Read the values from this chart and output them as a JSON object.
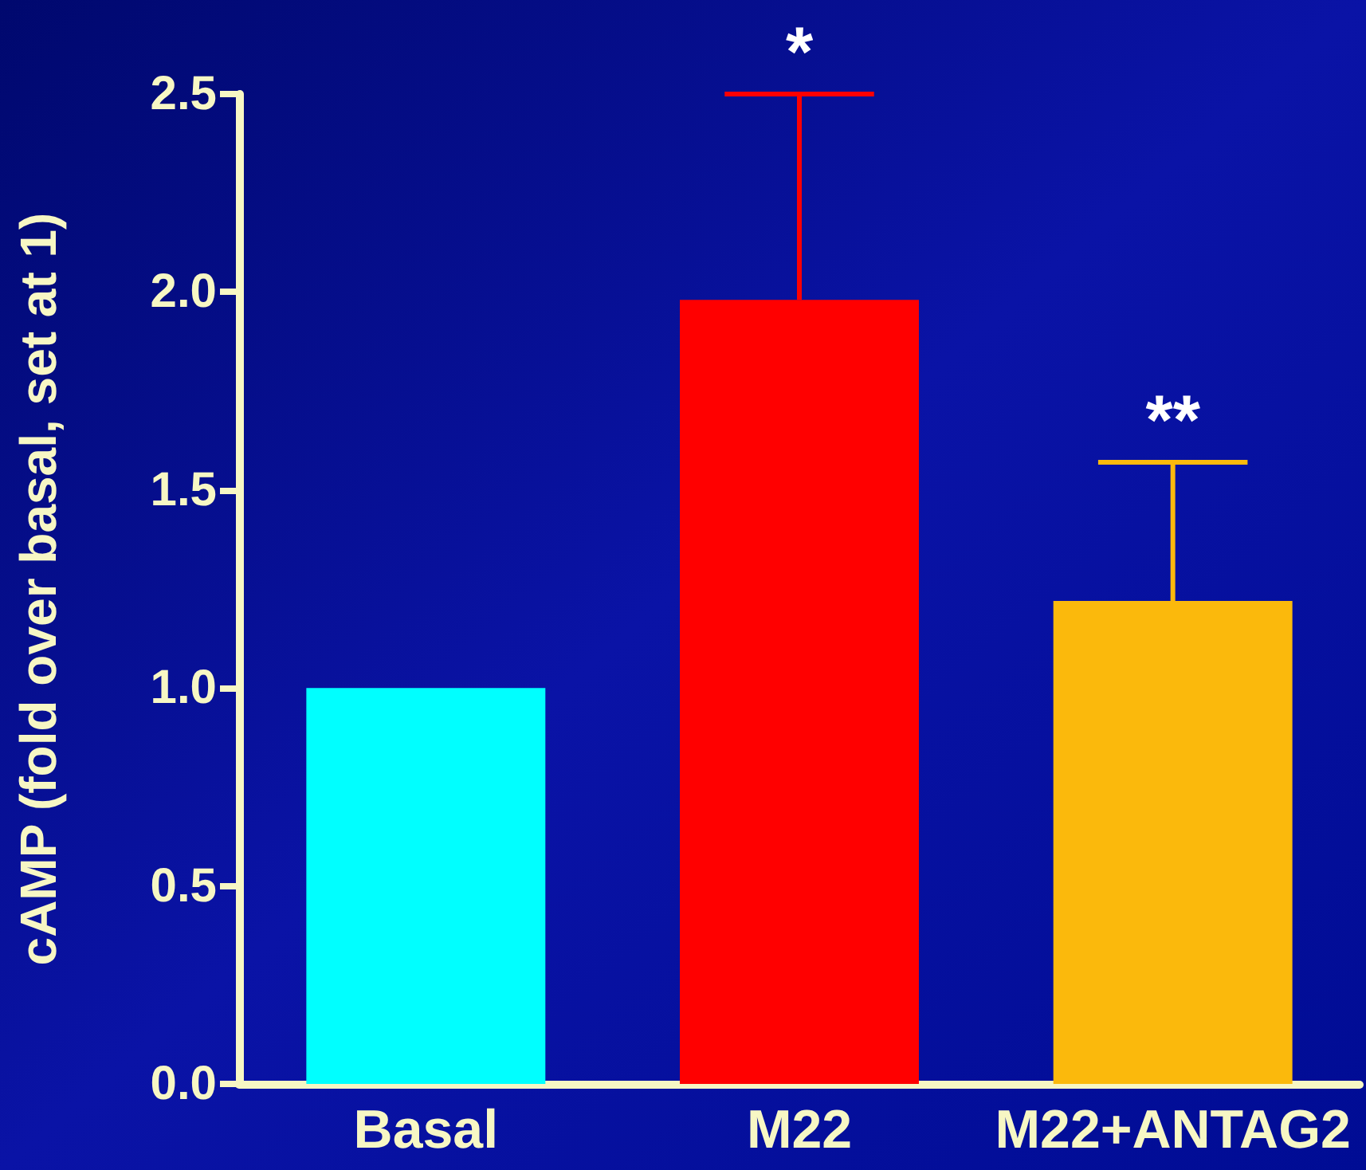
{
  "chart_data": {
    "type": "bar",
    "ylabel": "cAMP (fold over basal, set at 1)",
    "categories": [
      "Basal",
      "M22",
      "M22+ANTAG2"
    ],
    "values": [
      1.0,
      1.98,
      1.22
    ],
    "colors": [
      "#00ffff",
      "#ff0000",
      "#fbb90c"
    ],
    "errors": [
      null,
      [
        1.98,
        2.5
      ],
      [
        1.22,
        1.57
      ]
    ],
    "ylim": [
      0,
      2.5
    ],
    "yticks": [
      {
        "value": 0,
        "label": "0.0"
      },
      {
        "value": 0.5,
        "label": "0.5"
      },
      {
        "value": 1,
        "label": "1.0"
      },
      {
        "value": 1.5,
        "label": "1.5"
      },
      {
        "value": 2,
        "label": "2.0"
      },
      {
        "value": 2.5,
        "label": "2.5"
      }
    ],
    "annotations": [
      {
        "text": "*",
        "x": "M22",
        "y": 2.5
      },
      {
        "text": "**",
        "x": "M22+ANTAG2",
        "y": 1.57
      }
    ],
    "grid": false
  }
}
